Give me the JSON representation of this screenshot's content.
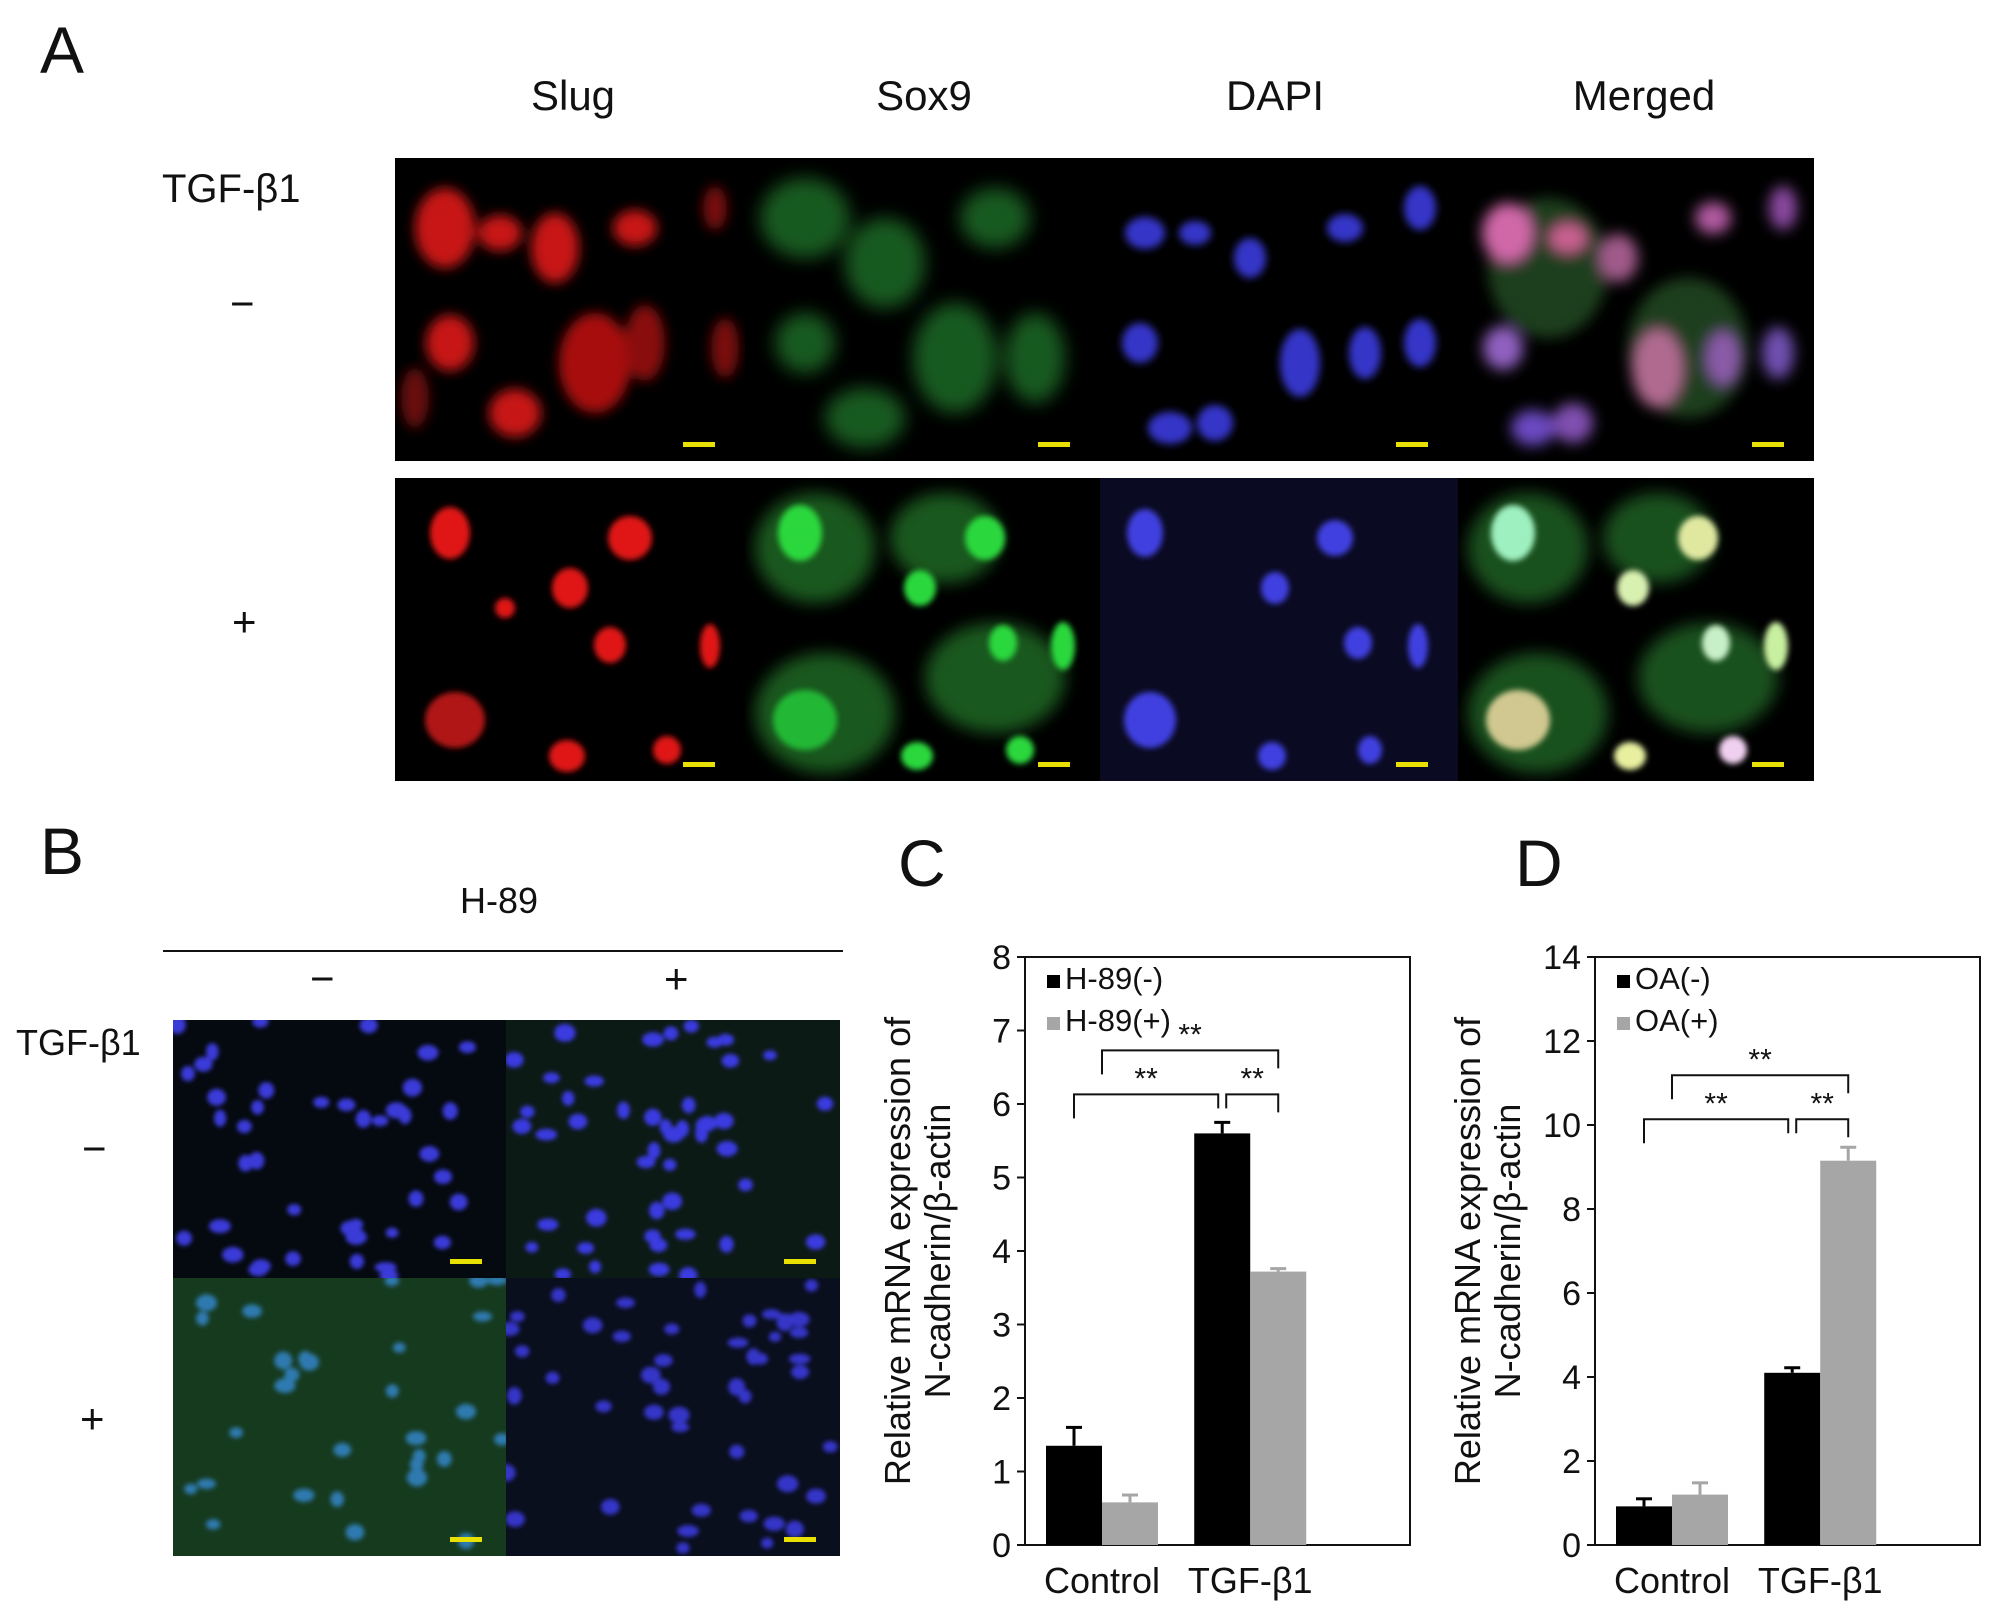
{
  "panels": {
    "a_letter": "A",
    "b_letter": "B",
    "c_letter": "C",
    "d_letter": "D"
  },
  "panel_a": {
    "columns": [
      "Slug",
      "Sox9",
      "DAPI",
      "Merged"
    ],
    "treatment_label": "TGF-β1",
    "row_minus": "−",
    "row_plus": "+",
    "channel_colors": {
      "slug": "#e81818",
      "sox9": "#22c834",
      "dapi": "#3d3df0"
    }
  },
  "panel_b": {
    "top_label": "H-89",
    "col_minus": "−",
    "col_plus": "+",
    "row_label": "TGF-β1",
    "row_minus": "−",
    "row_plus": "+"
  },
  "chart_data": [
    {
      "type": "bar",
      "panel": "C",
      "categories": [
        "Control",
        "TGF-β1"
      ],
      "series": [
        {
          "name": "H-89(-)",
          "values": [
            1.35,
            5.6
          ],
          "errors": [
            0.25,
            0.15
          ],
          "color": "#000000"
        },
        {
          "name": "H-89(+)",
          "values": [
            0.58,
            3.72
          ],
          "errors": [
            0.1,
            0.04
          ],
          "color": "#a6a6a6"
        }
      ],
      "ylabel_line1": "Relative mRNA expression of",
      "ylabel_line2": "N-cadherin/β-actin",
      "ylim": [
        0,
        8
      ],
      "yticks": [
        "0",
        "1",
        "2",
        "3",
        "4",
        "5",
        "6",
        "7",
        "8"
      ],
      "legend": "top-left",
      "significance": [
        {
          "label": "**"
        },
        {
          "label": "**"
        },
        {
          "label": "**"
        }
      ]
    },
    {
      "type": "bar",
      "panel": "D",
      "categories": [
        "Control",
        "TGF-β1"
      ],
      "series": [
        {
          "name": "OA(-)",
          "values": [
            0.92,
            4.1
          ],
          "errors": [
            0.18,
            0.12
          ],
          "color": "#000000"
        },
        {
          "name": "OA(+)",
          "values": [
            1.2,
            9.15
          ],
          "errors": [
            0.28,
            0.32
          ],
          "color": "#a6a6a6"
        }
      ],
      "ylabel_line1": "Relative mRNA expression of",
      "ylabel_line2": "N-cadherin/β-actin",
      "ylim": [
        0,
        14
      ],
      "yticks": [
        "0",
        "2",
        "4",
        "6",
        "8",
        "10",
        "12",
        "14"
      ],
      "legend": "top-left",
      "significance": [
        {
          "label": "**"
        },
        {
          "label": "**"
        },
        {
          "label": "**"
        }
      ]
    }
  ]
}
